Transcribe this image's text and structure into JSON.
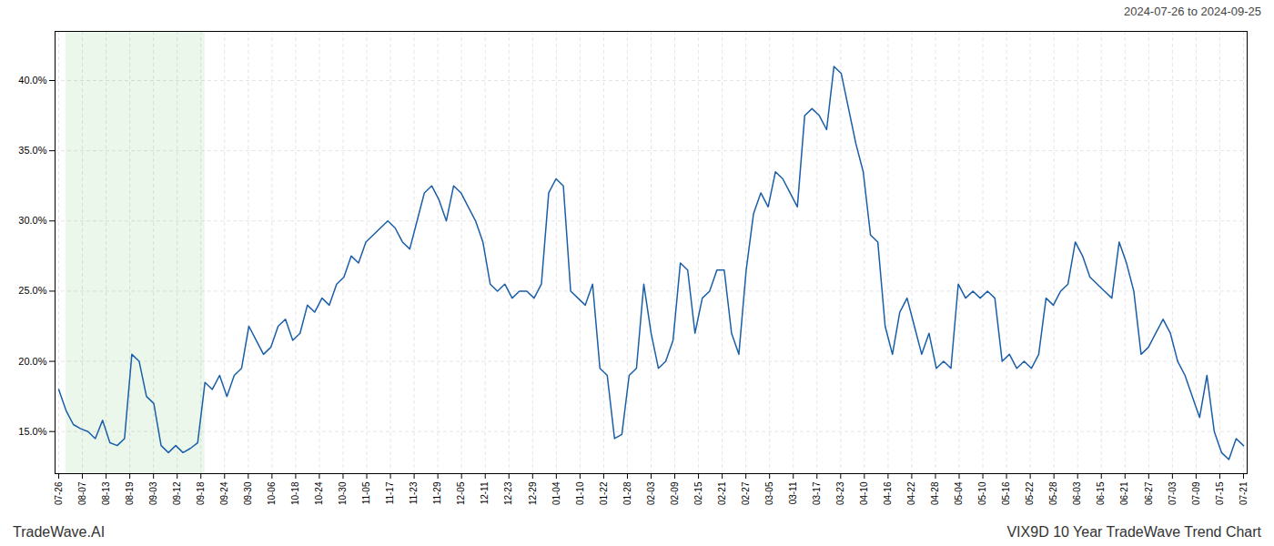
{
  "chart_data": {
    "type": "line",
    "title": "VIX9D 10 Year TradeWave Trend Chart",
    "subtitle": "2024-07-26 to 2024-09-25",
    "caption": "TradeWave.AI",
    "color": "#1a5fa8",
    "grid": true,
    "shade": {
      "x": [
        1,
        20
      ],
      "color": "#d4edd4"
    },
    "xlim": [
      -0.5,
      162.5
    ],
    "xticks": [
      {
        "value": 0,
        "label": "07-26"
      },
      {
        "value": 3.24,
        "label": "08-07"
      },
      {
        "value": 6.48,
        "label": "08-13"
      },
      {
        "value": 9.72,
        "label": "08-19"
      },
      {
        "value": 12.96,
        "label": "09-03"
      },
      {
        "value": 16.2,
        "label": "09-12"
      },
      {
        "value": 19.44,
        "label": "09-18"
      },
      {
        "value": 22.68,
        "label": "09-24"
      },
      {
        "value": 25.92,
        "label": "09-30"
      },
      {
        "value": 29.16,
        "label": "10-06"
      },
      {
        "value": 32.4,
        "label": "10-18"
      },
      {
        "value": 35.64,
        "label": "10-24"
      },
      {
        "value": 38.88,
        "label": "10-30"
      },
      {
        "value": 42.12,
        "label": "11-05"
      },
      {
        "value": 45.36,
        "label": "11-17"
      },
      {
        "value": 48.6,
        "label": "11-23"
      },
      {
        "value": 51.84,
        "label": "11-29"
      },
      {
        "value": 55.08,
        "label": "12-05"
      },
      {
        "value": 58.32,
        "label": "12-11"
      },
      {
        "value": 61.56,
        "label": "12-23"
      },
      {
        "value": 64.8,
        "label": "12-29"
      },
      {
        "value": 68.04,
        "label": "01-04"
      },
      {
        "value": 71.28,
        "label": "01-10"
      },
      {
        "value": 74.52,
        "label": "01-22"
      },
      {
        "value": 77.76,
        "label": "01-28"
      },
      {
        "value": 81,
        "label": "02-03"
      },
      {
        "value": 84.24,
        "label": "02-09"
      },
      {
        "value": 87.48,
        "label": "02-15"
      },
      {
        "value": 90.72,
        "label": "02-21"
      },
      {
        "value": 93.96,
        "label": "02-27"
      },
      {
        "value": 97.2,
        "label": "03-05"
      },
      {
        "value": 100.44,
        "label": "03-11"
      },
      {
        "value": 103.68,
        "label": "03-17"
      },
      {
        "value": 106.92,
        "label": "03-23"
      },
      {
        "value": 110.16,
        "label": "04-10"
      },
      {
        "value": 113.4,
        "label": "04-16"
      },
      {
        "value": 116.64,
        "label": "04-22"
      },
      {
        "value": 119.88,
        "label": "04-28"
      },
      {
        "value": 123.12,
        "label": "05-04"
      },
      {
        "value": 126.36,
        "label": "05-10"
      },
      {
        "value": 129.6,
        "label": "05-16"
      },
      {
        "value": 132.84,
        "label": "05-22"
      },
      {
        "value": 136.08,
        "label": "05-28"
      },
      {
        "value": 139.32,
        "label": "06-03"
      },
      {
        "value": 142.56,
        "label": "06-15"
      },
      {
        "value": 145.8,
        "label": "06-21"
      },
      {
        "value": 149.04,
        "label": "06-27"
      },
      {
        "value": 152.28,
        "label": "07-03"
      },
      {
        "value": 155.52,
        "label": "07-09"
      },
      {
        "value": 158.76,
        "label": "07-15"
      },
      {
        "value": 162,
        "label": "07-21"
      }
    ],
    "ylim": [
      12.0,
      43.5
    ],
    "yticks": [
      {
        "value": 15.0,
        "label": "15.0%"
      },
      {
        "value": 20.0,
        "label": "20.0%"
      },
      {
        "value": 25.0,
        "label": "25.0%"
      },
      {
        "value": 30.0,
        "label": "30.0%"
      },
      {
        "value": 35.0,
        "label": "35.0%"
      },
      {
        "value": 40.0,
        "label": "40.0%"
      }
    ],
    "values": [
      18.0,
      16.5,
      15.5,
      15.2,
      15.0,
      14.5,
      15.8,
      14.2,
      14.0,
      14.5,
      20.5,
      20.0,
      17.5,
      17.0,
      14.0,
      13.5,
      14.0,
      13.5,
      13.8,
      14.2,
      18.5,
      18.0,
      19.0,
      17.5,
      19.0,
      19.5,
      22.5,
      21.5,
      20.5,
      21.0,
      22.5,
      23.0,
      21.5,
      22.0,
      24.0,
      23.5,
      24.5,
      24.0,
      25.5,
      26.0,
      27.5,
      27.0,
      28.5,
      29.0,
      29.5,
      30.0,
      29.5,
      28.5,
      28.0,
      30.0,
      32.0,
      32.5,
      31.5,
      30.0,
      32.5,
      32.0,
      31.0,
      30.0,
      28.5,
      25.5,
      25.0,
      25.5,
      24.5,
      25.0,
      25.0,
      24.5,
      25.5,
      32.0,
      33.0,
      32.5,
      25.0,
      24.5,
      24.0,
      25.5,
      19.5,
      19.0,
      14.5,
      14.8,
      19.0,
      19.5,
      25.5,
      22.0,
      19.5,
      20.0,
      21.5,
      27.0,
      26.5,
      22.0,
      24.5,
      25.0,
      26.5,
      26.5,
      22.0,
      20.5,
      26.5,
      30.5,
      32.0,
      31.0,
      33.5,
      33.0,
      32.0,
      31.0,
      37.5,
      38.0,
      37.5,
      36.5,
      41.0,
      40.5,
      38.0,
      35.5,
      33.5,
      29.0,
      28.5,
      22.5,
      20.5,
      23.5,
      24.5,
      22.5,
      20.5,
      22.0,
      19.5,
      20.0,
      19.5,
      25.5,
      24.5,
      25.0,
      24.5,
      25.0,
      24.5,
      20.0,
      20.5,
      19.5,
      20.0,
      19.5,
      20.5,
      24.5,
      24.0,
      25.0,
      25.5,
      28.5,
      27.5,
      26.0,
      25.5,
      25.0,
      24.5,
      28.5,
      27.0,
      25.0,
      20.5,
      21.0,
      22.0,
      23.0,
      22.0,
      20.0,
      19.0,
      17.5,
      16.0,
      19.0,
      15.0,
      13.5,
      13.0,
      14.5,
      14.0
    ]
  }
}
